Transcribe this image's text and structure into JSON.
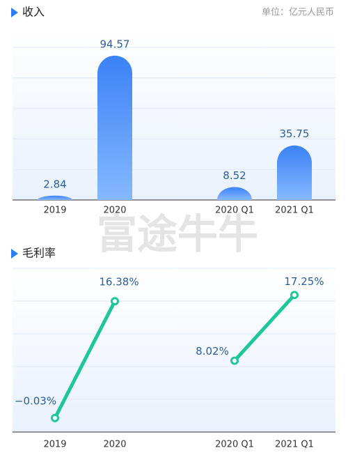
{
  "chart_data": [
    {
      "type": "bar",
      "title": "收入",
      "subtitle": "单位：亿元人民币",
      "categories": [
        "2019",
        "2020",
        null,
        "2020 Q1",
        "2021 Q1"
      ],
      "values": [
        2.84,
        94.57,
        null,
        8.52,
        35.75
      ],
      "color": "#3d86f7",
      "ylim": [
        0,
        100
      ],
      "grid": true
    },
    {
      "type": "line",
      "title": "毛利率",
      "categories": [
        "2019",
        "2020",
        null,
        "2020 Q1",
        "2021 Q1"
      ],
      "values": [
        -0.03,
        16.38,
        null,
        8.02,
        17.25
      ],
      "value_labels": [
        "−0.03%",
        "16.38%",
        null,
        "8.02%",
        "17.25%"
      ],
      "color": "#1ec79a",
      "ylim": [
        -2,
        21
      ],
      "grid": true
    }
  ],
  "watermark": "富途牛牛"
}
